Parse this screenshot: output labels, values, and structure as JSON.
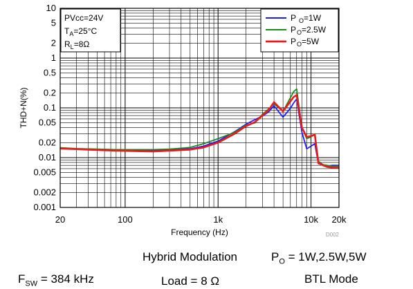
{
  "chart_data": {
    "type": "line",
    "xscale": "log",
    "yscale": "log",
    "xlabel": "Frequency (Hz)",
    "ylabel": "THD+N(%)",
    "xlim": [
      20,
      20000
    ],
    "ylim": [
      0.001,
      10
    ],
    "x_ticks": [
      {
        "value": 20,
        "label": "20"
      },
      {
        "value": 100,
        "label": "100"
      },
      {
        "value": 1000,
        "label": "1k"
      },
      {
        "value": 10000,
        "label": "10k"
      },
      {
        "value": 20000,
        "label": "20k"
      }
    ],
    "y_ticks": [
      {
        "value": 0.001,
        "label": "0.001"
      },
      {
        "value": 0.002,
        "label": "0.002"
      },
      {
        "value": 0.005,
        "label": "0.005"
      },
      {
        "value": 0.01,
        "label": "0.01"
      },
      {
        "value": 0.02,
        "label": "0.02"
      },
      {
        "value": 0.05,
        "label": "0.05"
      },
      {
        "value": 0.1,
        "label": "0.1"
      },
      {
        "value": 0.2,
        "label": "0.2"
      },
      {
        "value": 0.5,
        "label": "0.5"
      },
      {
        "value": 1,
        "label": "1"
      },
      {
        "value": 2,
        "label": "2"
      },
      {
        "value": 5,
        "label": "5"
      },
      {
        "value": 10,
        "label": "10"
      }
    ],
    "grid": true,
    "legend_position": "top-right",
    "conditions": [
      {
        "main": "PVcc=24V",
        "sub": "",
        "rest": ""
      },
      {
        "main": "T",
        "sub": "A",
        "rest": "=25°C"
      },
      {
        "main": "R",
        "sub": "L",
        "rest": "=8Ω"
      }
    ],
    "series": [
      {
        "name": "P O=1W",
        "label_main": "P",
        "label_sub": "O",
        "label_rest": "=1W",
        "color": "#1a1aff",
        "x": [
          20,
          30,
          50,
          80,
          120,
          200,
          300,
          500,
          700,
          1000,
          1500,
          2000,
          2500,
          3000,
          3500,
          4000,
          5000,
          6000,
          6500,
          7000,
          8000,
          9000,
          10000,
          11000,
          12000,
          13500,
          15000,
          17000,
          20000
        ],
        "y": [
          0.0155,
          0.015,
          0.0145,
          0.014,
          0.014,
          0.014,
          0.0145,
          0.015,
          0.017,
          0.0215,
          0.033,
          0.047,
          0.058,
          0.068,
          0.083,
          0.11,
          0.065,
          0.098,
          0.125,
          0.15,
          0.032,
          0.015,
          0.017,
          0.019,
          0.0076,
          0.007,
          0.0068,
          0.007,
          0.007
        ]
      },
      {
        "name": "PO=2.5W",
        "label_main": "P",
        "label_sub": "O",
        "label_rest": "=2.5W",
        "color": "#1a8a1a",
        "x": [
          20,
          30,
          50,
          80,
          120,
          200,
          300,
          500,
          700,
          1000,
          1500,
          2000,
          2500,
          3000,
          3500,
          4000,
          5000,
          6000,
          6500,
          7000,
          8000,
          9000,
          10000,
          11000,
          12000,
          13500,
          15000,
          17000,
          20000
        ],
        "y": [
          0.0158,
          0.0152,
          0.0148,
          0.0145,
          0.0145,
          0.0145,
          0.0148,
          0.016,
          0.019,
          0.024,
          0.032,
          0.045,
          0.05,
          0.074,
          0.095,
          0.12,
          0.085,
          0.16,
          0.21,
          0.24,
          0.04,
          0.024,
          0.026,
          0.03,
          0.0085,
          0.0072,
          0.007,
          0.0067,
          0.0068
        ]
      },
      {
        "name": "PO=5W",
        "label_main": "P",
        "label_sub": "O",
        "label_rest": "=5W",
        "color": "#ee1a1a",
        "x": [
          20,
          30,
          50,
          80,
          120,
          200,
          300,
          500,
          700,
          1000,
          1500,
          2000,
          2500,
          3000,
          3500,
          4000,
          5000,
          6000,
          6500,
          7000,
          8000,
          9000,
          10000,
          11000,
          12000,
          13500,
          15000,
          17000,
          20000
        ],
        "y": [
          0.0152,
          0.0148,
          0.0142,
          0.0138,
          0.0136,
          0.0133,
          0.0138,
          0.0145,
          0.016,
          0.02,
          0.03,
          0.043,
          0.052,
          0.07,
          0.09,
          0.13,
          0.085,
          0.135,
          0.165,
          0.18,
          0.04,
          0.026,
          0.027,
          0.029,
          0.0078,
          0.007,
          0.0065,
          0.0063,
          0.0063
        ]
      }
    ],
    "note": "D002"
  },
  "captions": {
    "modulation": "Hybrid Modulation",
    "po_main": "P",
    "po_sub": "O",
    "po_rest": " = 1W,2.5W,5W",
    "fsw_main": "F",
    "fsw_sub": "SW",
    "fsw_rest": " = 384 kHz",
    "load": "Load = 8  Ω",
    "btl": "BTL Mode"
  }
}
